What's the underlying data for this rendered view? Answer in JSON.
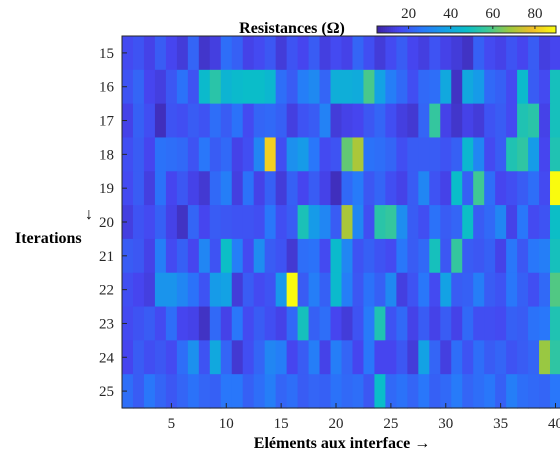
{
  "chart_data": {
    "type": "heatmap",
    "title": "Resistances (Ω)",
    "xlabel": "Eléments aux interface →",
    "ylabel": "Iterations",
    "ylabel_arrow": "↓",
    "x_range": [
      1,
      40
    ],
    "x_ticks": [
      5,
      10,
      15,
      20,
      25,
      30,
      35,
      40
    ],
    "y_rows": [
      15,
      16,
      17,
      18,
      19,
      20,
      21,
      22,
      23,
      24,
      25
    ],
    "colorbar": {
      "colormap": "parula",
      "ticks": [
        20,
        40,
        60,
        80
      ],
      "clim": [
        5,
        90
      ]
    },
    "values": [
      [
        16,
        18,
        14,
        20,
        15,
        12,
        22,
        10,
        13,
        24,
        21,
        14,
        16,
        19,
        12,
        18,
        15,
        20,
        13,
        16,
        14,
        22,
        17,
        12,
        16,
        20,
        15,
        13,
        18,
        14,
        12,
        9,
        21,
        16,
        14,
        18,
        15,
        20,
        13,
        15
      ],
      [
        18,
        22,
        15,
        13,
        19,
        25,
        18,
        46,
        54,
        44,
        46,
        47,
        47,
        45,
        24,
        20,
        28,
        31,
        22,
        42,
        42,
        41,
        59,
        38,
        28,
        23,
        17,
        23,
        24,
        40,
        9,
        40,
        36,
        23,
        21,
        16,
        46,
        20,
        16,
        50
      ],
      [
        14,
        21,
        17,
        8,
        18,
        17,
        20,
        18,
        24,
        20,
        25,
        16,
        22,
        23,
        21,
        13,
        18,
        20,
        29,
        12,
        14,
        15,
        19,
        22,
        17,
        13,
        11,
        22,
        56,
        14,
        10,
        14,
        12,
        18,
        20,
        16,
        52,
        54,
        14,
        50
      ],
      [
        17,
        20,
        15,
        25,
        24,
        23,
        18,
        26,
        20,
        23,
        14,
        17,
        30,
        82,
        17,
        33,
        36,
        26,
        16,
        18,
        62,
        70,
        25,
        24,
        22,
        17,
        20,
        20,
        20,
        18,
        21,
        45,
        30,
        16,
        20,
        52,
        55,
        36,
        15,
        52
      ],
      [
        16,
        20,
        13,
        25,
        15,
        19,
        14,
        11,
        23,
        28,
        13,
        25,
        14,
        21,
        12,
        21,
        15,
        20,
        14,
        8,
        23,
        27,
        19,
        22,
        17,
        14,
        20,
        30,
        18,
        14,
        47,
        21,
        58,
        24,
        15,
        17,
        20,
        24,
        16,
        95
      ],
      [
        13,
        18,
        16,
        21,
        14,
        9,
        22,
        15,
        20,
        19,
        18,
        18,
        17,
        26,
        17,
        20,
        51,
        36,
        30,
        20,
        70,
        30,
        17,
        54,
        56,
        32,
        20,
        17,
        25,
        20,
        22,
        48,
        20,
        23,
        30,
        14,
        26,
        16,
        18,
        48
      ],
      [
        20,
        19,
        14,
        28,
        16,
        21,
        15,
        30,
        18,
        48,
        28,
        16,
        32,
        20,
        18,
        11,
        24,
        25,
        16,
        46,
        30,
        18,
        21,
        18,
        16,
        26,
        20,
        23,
        50,
        19,
        56,
        20,
        19,
        21,
        14,
        26,
        19,
        26,
        28,
        50
      ],
      [
        17,
        15,
        13,
        34,
        34,
        30,
        25,
        18,
        36,
        38,
        12,
        20,
        16,
        18,
        35,
        98,
        20,
        28,
        21,
        46,
        28,
        19,
        25,
        21,
        31,
        13,
        18,
        26,
        16,
        38,
        20,
        21,
        28,
        20,
        18,
        26,
        21,
        17,
        23,
        60
      ],
      [
        16,
        18,
        20,
        16,
        24,
        15,
        14,
        9,
        23,
        14,
        26,
        16,
        20,
        17,
        14,
        23,
        50,
        21,
        24,
        15,
        12,
        18,
        27,
        52,
        18,
        23,
        14,
        20,
        14,
        20,
        14,
        23,
        17,
        17,
        16,
        21,
        20,
        25,
        26,
        52
      ],
      [
        15,
        20,
        17,
        19,
        16,
        24,
        33,
        18,
        40,
        22,
        11,
        17,
        22,
        30,
        28,
        15,
        20,
        28,
        14,
        28,
        22,
        15,
        26,
        15,
        15,
        19,
        12,
        38,
        22,
        13,
        24,
        18,
        24,
        20,
        22,
        18,
        20,
        22,
        68,
        55
      ],
      [
        24,
        20,
        26,
        22,
        19,
        22,
        25,
        22,
        21,
        26,
        26,
        21,
        24,
        28,
        22,
        24,
        20,
        22,
        21,
        25,
        23,
        24,
        19,
        47,
        23,
        25,
        22,
        26,
        21,
        23,
        27,
        22,
        24,
        26,
        21,
        28,
        24,
        23,
        22,
        26
      ]
    ]
  }
}
